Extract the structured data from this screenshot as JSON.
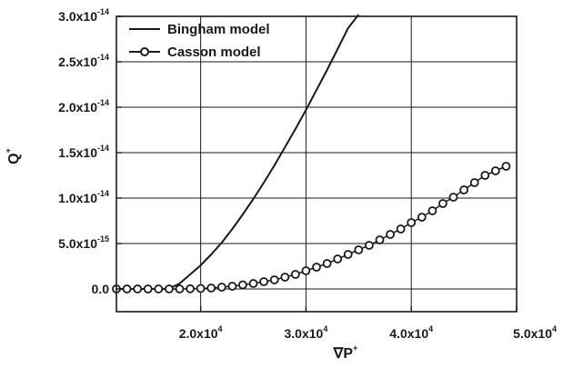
{
  "chart_data": {
    "type": "line",
    "title": "",
    "xlabel": {
      "base": "∇P",
      "sup": "+"
    },
    "ylabel": {
      "base": "Q",
      "sup": "+"
    },
    "xlim": [
      12000,
      50000
    ],
    "ylim": [
      -2.5e-15,
      3e-14
    ],
    "grid": true,
    "legend_position": "top-left",
    "x_ticks": [
      {
        "value": 20000,
        "mantissa": "2.0x10",
        "exp": "4"
      },
      {
        "value": 30000,
        "mantissa": "3.0x10",
        "exp": "4"
      },
      {
        "value": 40000,
        "mantissa": "4.0x10",
        "exp": "4"
      },
      {
        "value": 50000,
        "mantissa": "5.0x10",
        "exp": "4"
      }
    ],
    "y_ticks": [
      {
        "value": 0,
        "mantissa": "0.0",
        "exp": ""
      },
      {
        "value": 5e-15,
        "mantissa": "5.0x10",
        "exp": "-15"
      },
      {
        "value": 1e-14,
        "mantissa": "1.0x10",
        "exp": "-14"
      },
      {
        "value": 1.5e-14,
        "mantissa": "1.5x10",
        "exp": "-14"
      },
      {
        "value": 2e-14,
        "mantissa": "2.0x10",
        "exp": "-14"
      },
      {
        "value": 2.5e-14,
        "mantissa": "2.5x10",
        "exp": "-14"
      },
      {
        "value": 3e-14,
        "mantissa": "3.0x10",
        "exp": "-14"
      }
    ],
    "series": [
      {
        "name": "Bingham model",
        "style": "solid-line",
        "color": "#1a1a1a",
        "x": [
          12000,
          16000,
          17000,
          18000,
          19000,
          20000,
          21000,
          22000,
          23000,
          24000,
          25000,
          26000,
          27000,
          28000,
          29000,
          30000,
          31000,
          32000,
          33000,
          34000,
          35000
        ],
        "y": [
          0,
          0,
          3e-17,
          6e-16,
          1.6e-15,
          2.6e-15,
          3.8e-15,
          5.1e-15,
          6.6e-15,
          8.2e-15,
          9.9e-15,
          1.17e-14,
          1.36e-14,
          1.56e-14,
          1.76e-14,
          1.97e-14,
          2.19e-14,
          2.41e-14,
          2.64e-14,
          2.87e-14,
          3.02e-14
        ]
      },
      {
        "name": "Casson model",
        "style": "line-with-open-circles",
        "color": "#1a1a1a",
        "x": [
          12000,
          13000,
          14000,
          15000,
          16000,
          17000,
          18000,
          19000,
          20000,
          21000,
          22000,
          23000,
          24000,
          25000,
          26000,
          27000,
          28000,
          29000,
          30000,
          31000,
          32000,
          33000,
          34000,
          35000,
          36000,
          37000,
          38000,
          39000,
          40000,
          41000,
          42000,
          43000,
          44000,
          45000,
          46000,
          47000,
          48000,
          49000
        ],
        "y": [
          0,
          0,
          0,
          0,
          0,
          0,
          0,
          2e-17,
          5e-17,
          1e-16,
          2e-16,
          3e-16,
          4.5e-16,
          6e-16,
          8e-16,
          1e-15,
          1.3e-15,
          1.6e-15,
          2e-15,
          2.4e-15,
          2.8e-15,
          3.3e-15,
          3.8e-15,
          4.3e-15,
          4.8e-15,
          5.4e-15,
          6e-15,
          6.6e-15,
          7.3e-15,
          7.9e-15,
          8.6e-15,
          9.4e-15,
          1.01e-14,
          1.09e-14,
          1.17e-14,
          1.25e-14,
          1.3e-14,
          1.35e-14
        ]
      }
    ]
  }
}
